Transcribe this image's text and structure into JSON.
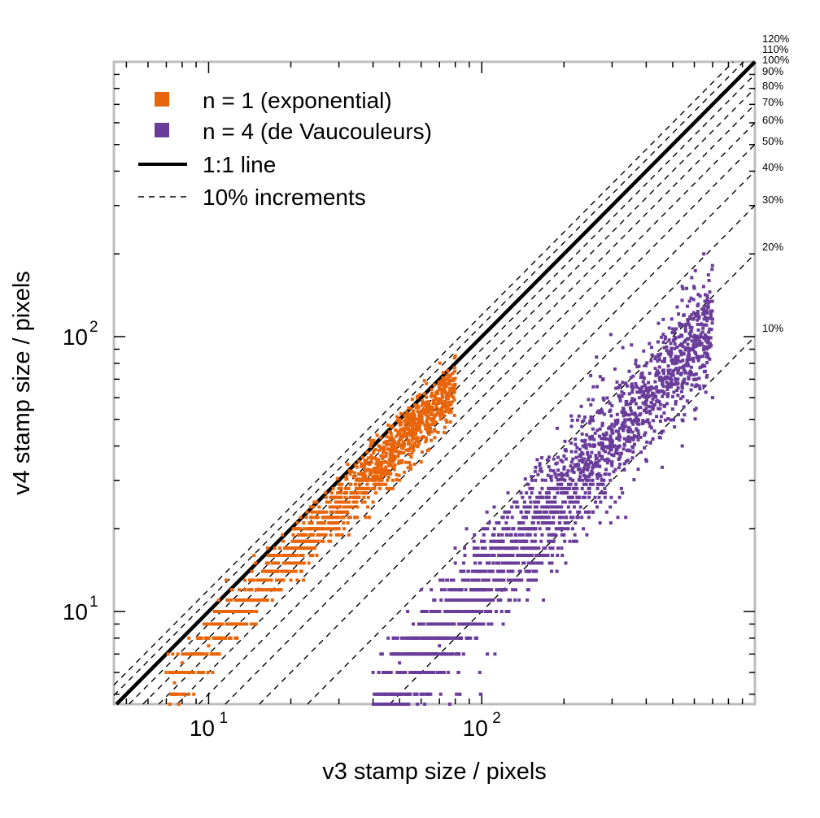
{
  "chart_data": {
    "type": "scatter",
    "xlabel": "v3 stamp size / pixels",
    "ylabel": "v4 stamp size / pixels",
    "xscale": "log",
    "yscale": "log",
    "xlim": [
      4.5,
      1000
    ],
    "ylim": [
      4.6,
      1000
    ],
    "x_ticks": [
      {
        "base": "10",
        "exp": "1",
        "value": 10
      },
      {
        "base": "10",
        "exp": "2",
        "value": 100
      }
    ],
    "y_ticks": [
      {
        "base": "10",
        "exp": "1",
        "value": 10
      },
      {
        "base": "10",
        "exp": "2",
        "value": 100
      }
    ],
    "legend": {
      "position": "top-left",
      "entries": [
        {
          "label": "n = 1 (exponential)",
          "marker": "square",
          "color": "#e8650a"
        },
        {
          "label": "n = 4 (de Vaucouleurs)",
          "marker": "square",
          "color": "#6a3d9a"
        },
        {
          "label": "1:1 line",
          "marker": "solid-line",
          "color": "#000000"
        },
        {
          "label": "10% increments",
          "marker": "dashed-line",
          "color": "#000000"
        }
      ]
    },
    "reference_lines": [
      {
        "label": "120%",
        "ratio": 1.2
      },
      {
        "label": "110%",
        "ratio": 1.1
      },
      {
        "label": "100%",
        "ratio": 1.0
      },
      {
        "label": "90%",
        "ratio": 0.9
      },
      {
        "label": "80%",
        "ratio": 0.8
      },
      {
        "label": "70%",
        "ratio": 0.7
      },
      {
        "label": "60%",
        "ratio": 0.6
      },
      {
        "label": "50%",
        "ratio": 0.5
      },
      {
        "label": "40%",
        "ratio": 0.4
      },
      {
        "label": "30%",
        "ratio": 0.3
      },
      {
        "label": "20%",
        "ratio": 0.2
      },
      {
        "label": "10%",
        "ratio": 0.1
      }
    ],
    "series": [
      {
        "name": "n = 1 (exponential)",
        "color": "#e8650a",
        "x": [
          7,
          8,
          9,
          7.5,
          8.5,
          10,
          11,
          9.5,
          12,
          13,
          14,
          15,
          16,
          17,
          18,
          19,
          20,
          22,
          24,
          26,
          28,
          30,
          33,
          36,
          40,
          44,
          48,
          52,
          56,
          60,
          64,
          70,
          75,
          80,
          30,
          35,
          40,
          45,
          50,
          55,
          60,
          38,
          42,
          46,
          50,
          54,
          58
        ],
        "y": [
          6,
          6.5,
          7,
          5.5,
          6,
          7.5,
          8,
          7,
          9,
          10,
          11,
          12,
          13,
          14,
          15,
          16,
          17,
          18,
          19,
          21,
          23,
          24,
          26,
          28,
          30,
          33,
          36,
          40,
          45,
          50,
          55,
          65,
          75,
          85,
          20,
          22,
          25,
          28,
          30,
          33,
          35,
          35,
          40,
          45,
          50,
          55,
          60
        ]
      },
      {
        "name": "n = 4 (de Vaucouleurs)",
        "color": "#6a3d9a",
        "x": [
          40,
          50,
          60,
          70,
          80,
          90,
          100,
          110,
          120,
          140,
          160,
          180,
          200,
          220,
          240,
          260,
          280,
          300,
          320,
          350,
          400,
          450,
          500,
          550,
          600,
          650,
          700,
          80,
          100,
          120,
          150,
          180,
          200,
          250,
          300,
          350,
          400
        ],
        "y": [
          6,
          6.5,
          7,
          7.5,
          8,
          9,
          10,
          11,
          12,
          13,
          15,
          17,
          19,
          21,
          23,
          26,
          30,
          35,
          40,
          50,
          60,
          70,
          80,
          120,
          150,
          200,
          60,
          15,
          18,
          22,
          26,
          30,
          33,
          40,
          48,
          55,
          65
        ]
      }
    ]
  }
}
